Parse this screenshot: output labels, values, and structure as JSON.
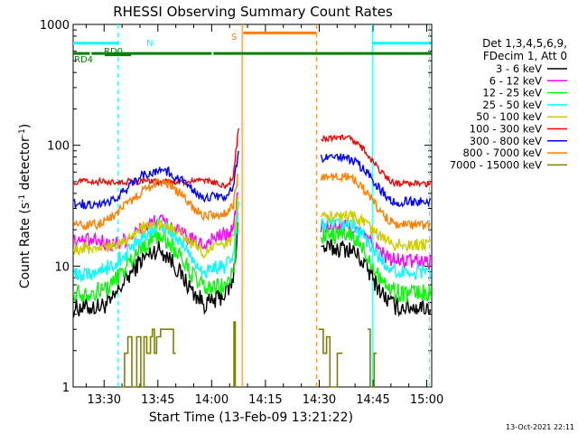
{
  "chart_data": {
    "type": "line",
    "title": "RHESSI Observing Summary Count Rates",
    "xlabel": "Start Time (13-Feb-09 13:21:22)",
    "ylabel_main": "Count Rate (s",
    "ylabel_sup1": "-1",
    "ylabel_mid": " detector",
    "ylabel_sup2": "-1",
    "ylabel_end": ")",
    "yscale": "log",
    "ylim": [
      1,
      1000
    ],
    "xlim_minutes": [
      21.37,
      121.37
    ],
    "x_ticks": [
      {
        "label": "13:30",
        "m": 30
      },
      {
        "label": "13:45",
        "m": 45
      },
      {
        "label": "14:00",
        "m": 60
      },
      {
        "label": "14:15",
        "m": 75
      },
      {
        "label": "14:30",
        "m": 90
      },
      {
        "label": "14:45",
        "m": 105
      },
      {
        "label": "15:00",
        "m": 120
      }
    ],
    "y_ticks": [
      {
        "label": "1",
        "v": 1
      },
      {
        "label": "10",
        "v": 10
      },
      {
        "label": "100",
        "v": 100
      },
      {
        "label": "1000",
        "v": 1000
      }
    ],
    "legend_header": [
      "Det 1,3,4,5,6,9,",
      "FDecim 1, Att 0"
    ],
    "legend_position": "right",
    "footer_date": "13-Oct-2021 22:11",
    "series": [
      {
        "name": "3 - 6 keV",
        "color": "#000000",
        "level": 5.0,
        "noise": 0.06,
        "x": [
          21.5,
          28.5,
          32,
          35,
          40,
          45,
          48,
          52,
          55,
          58,
          60,
          64,
          66,
          67.5,
          92
        ],
        "y": [
          4.5,
          4.6,
          5.0,
          7.0,
          11,
          14,
          12,
          8,
          6,
          4.9,
          5.0,
          6.0,
          7.5,
          26,
          14
        ]
      },
      {
        "name": "6 - 12 keV",
        "color": "#ff00ff",
        "level": 16,
        "noise": 0.05,
        "x": [
          21.5,
          28.5,
          32,
          35,
          40,
          45,
          48,
          52,
          55,
          58,
          60,
          64,
          66,
          67.5,
          92
        ],
        "y": [
          16,
          16,
          15,
          16,
          20,
          24,
          22,
          18,
          16,
          15,
          17,
          18,
          20,
          45,
          21
        ]
      },
      {
        "name": "12 - 25 keV",
        "color": "#00ff00",
        "level": 6.0,
        "noise": 0.06,
        "x": [
          21.5,
          28.5,
          32,
          35,
          40,
          45,
          48,
          52,
          55,
          58,
          60,
          64,
          66,
          67.5,
          92
        ],
        "y": [
          6.0,
          6.2,
          7.0,
          9.0,
          14,
          18,
          16,
          11,
          8,
          6.5,
          6.5,
          7.0,
          8.5,
          30,
          18
        ]
      },
      {
        "name": "25 - 50 keV",
        "color": "#00ffff",
        "level": 8.0,
        "noise": 0.05,
        "x": [
          21.5,
          28.5,
          32,
          35,
          40,
          45,
          48,
          52,
          55,
          58,
          60,
          64,
          66,
          67.5,
          92
        ],
        "y": [
          8.5,
          9,
          10,
          12,
          17,
          22,
          20,
          15,
          11,
          9,
          9.5,
          10,
          12,
          35,
          22
        ]
      },
      {
        "name": "50 - 100 keV",
        "color": "#cccc00",
        "level": 12,
        "noise": 0.04,
        "x": [
          21.5,
          28.5,
          32,
          35,
          40,
          45,
          48,
          52,
          55,
          58,
          60,
          64,
          66,
          67.5,
          92
        ],
        "y": [
          14,
          14,
          15,
          16,
          20,
          22,
          21,
          18,
          15,
          13,
          14,
          15,
          17,
          40,
          26
        ]
      },
      {
        "name": "100 - 300 keV",
        "color": "#ff0000",
        "level": 50,
        "noise": 0.02,
        "x": [
          21.5,
          26,
          26.01,
          60,
          64,
          66,
          67.5,
          92
        ],
        "y": [
          50,
          50,
          50,
          50,
          45,
          55,
          140,
          115
        ]
      },
      {
        "name": "300 - 800 keV",
        "color": "#0000ff",
        "level": 35,
        "noise": 0.03,
        "x": [
          21.5,
          28.5,
          32,
          35,
          40,
          45,
          48,
          52,
          55,
          58,
          60,
          64,
          66,
          67.5,
          92
        ],
        "y": [
          33,
          32,
          35,
          40,
          55,
          62,
          60,
          50,
          42,
          36,
          38,
          37,
          44,
          90,
          78
        ]
      },
      {
        "name": "800 - 7000 keV",
        "color": "#ff8000",
        "level": 22,
        "noise": 0.03,
        "x": [
          21.5,
          28.5,
          32,
          35,
          40,
          45,
          48,
          52,
          55,
          58,
          60,
          64,
          66,
          67.5,
          92
        ],
        "y": [
          22,
          22,
          25,
          30,
          40,
          50,
          48,
          38,
          30,
          26,
          27,
          27,
          32,
          60,
          55
        ]
      },
      {
        "name": "7000 - 15000 keV",
        "color": "#808000",
        "level": 2,
        "noise": 0.0,
        "x": [],
        "y": []
      }
    ],
    "segments_after_gap": {
      "start_m": 90.5,
      "end_m": 121.0,
      "end_values": [
        4.6,
        11,
        6,
        9,
        15,
        48,
        34,
        22
      ]
    },
    "attenuator_bars": [
      {
        "label": "N",
        "color": "#00ffff",
        "segments": [
          [
            21.37,
            33.9
          ],
          [
            104.8,
            121.0
          ]
        ],
        "v": 700
      },
      {
        "label": "RD0",
        "color": "#008000",
        "segments": [
          [
            30.2,
            37.5
          ]
        ],
        "v": 560
      },
      {
        "label": "RD4",
        "color": "#008000",
        "segments": [
          [
            21.37,
            26.0
          ],
          [
            26.5,
            60.0
          ],
          [
            60.5,
            121.37
          ]
        ],
        "v": 575
      },
      {
        "label": "S",
        "color": "#ff8000",
        "segments": [
          [
            68.8,
            89.2
          ]
        ],
        "v": 850
      }
    ],
    "vlines": [
      {
        "m": 33.9,
        "color": "#00ffff",
        "style": "dashed"
      },
      {
        "m": 68.5,
        "color": "#ff8000",
        "style": "solid"
      },
      {
        "m": 89.2,
        "color": "#ff8000",
        "style": "dashed"
      },
      {
        "m": 104.8,
        "color": "#00ffff",
        "style": "solid"
      },
      {
        "m": 120.7,
        "color": "#00ffff",
        "style": "dashed"
      }
    ],
    "gap": {
      "start_m": 68.6,
      "end_m": 90.3
    }
  }
}
